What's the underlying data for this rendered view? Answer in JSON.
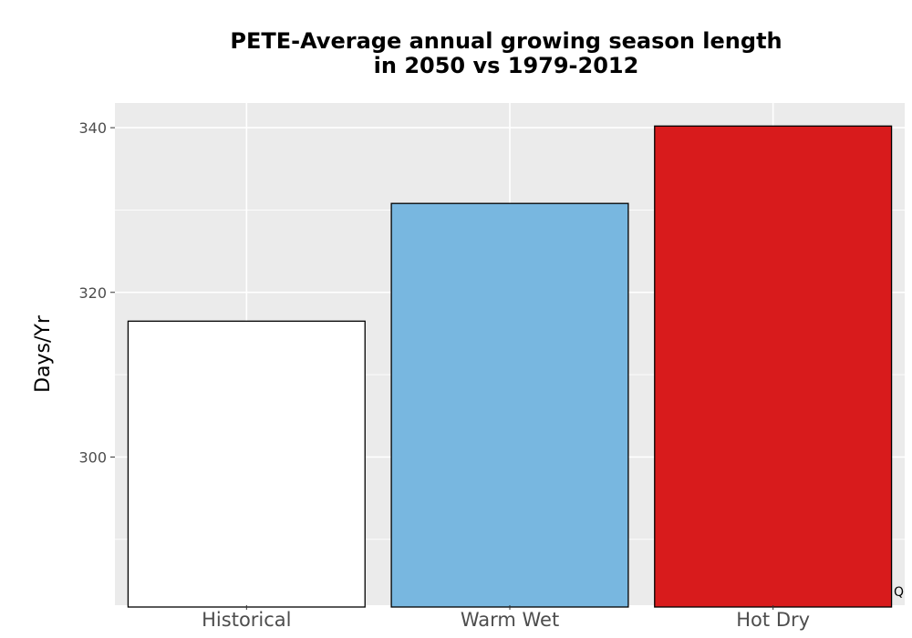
{
  "chart_data": {
    "type": "bar",
    "title": [
      "PETE-Average annual growing season length",
      "in 2050 vs 1979-2012"
    ],
    "xlabel": "",
    "ylabel": "Days/Yr",
    "categories": [
      "Historical",
      "Warm Wet",
      "Hot Dry"
    ],
    "values": [
      316.5,
      330.8,
      340.2
    ],
    "colors": [
      "#ffffff",
      "#78b7e0",
      "#d81b1c"
    ],
    "ylim": [
      282,
      343
    ],
    "yticks": [
      300,
      320,
      340
    ],
    "grid": true,
    "panel_background": "#ebebeb",
    "bar_outline": "#000000",
    "corner_mark": "Q"
  }
}
